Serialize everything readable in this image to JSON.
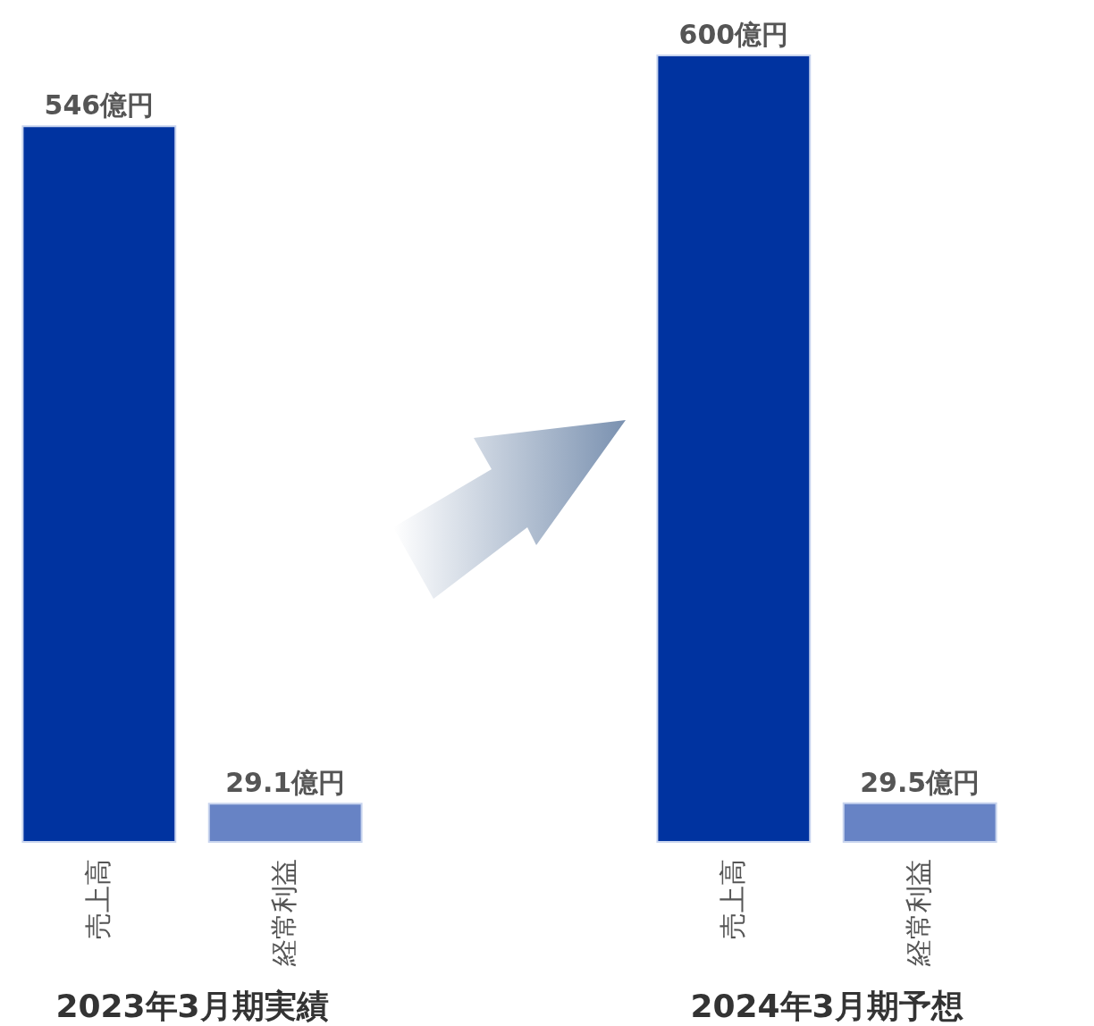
{
  "chart_data": [
    {
      "type": "bar",
      "title": "2023年3月期実績",
      "categories": [
        "売上高",
        "経常利益"
      ],
      "values": [
        546,
        29.1
      ],
      "colors": [
        "#0033a0",
        "#6783c5"
      ],
      "value_labels": [
        "546億円",
        "29.1億円"
      ]
    },
    {
      "type": "bar",
      "title": "2024年3月期予想",
      "categories": [
        "売上高",
        "経常利益"
      ],
      "values": [
        600,
        29.5
      ],
      "colors": [
        "#0033a0",
        "#6783c5"
      ],
      "value_labels": [
        "600億円",
        "29.5億円"
      ]
    }
  ]
}
